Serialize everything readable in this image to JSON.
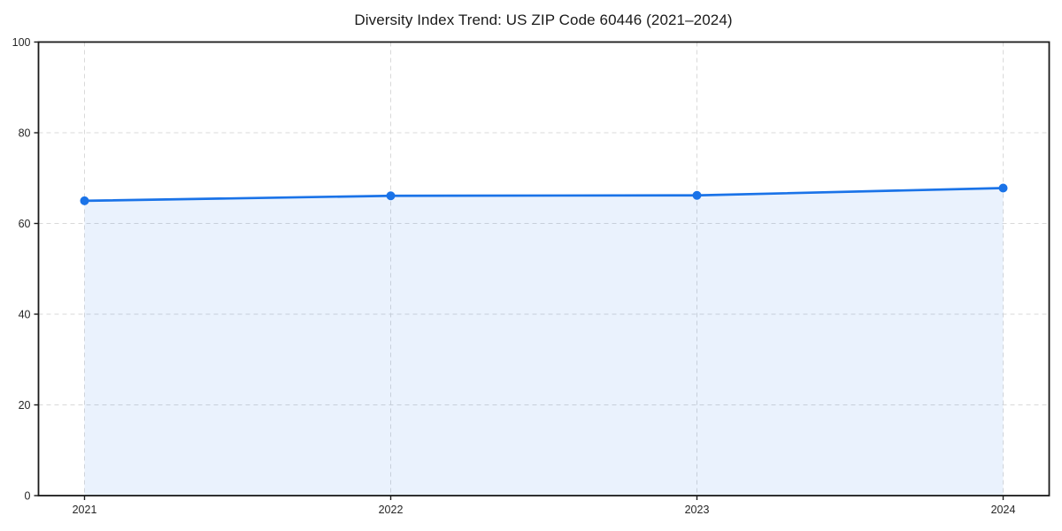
{
  "chart_data": {
    "type": "area",
    "title": "Diversity Index Trend: US ZIP Code 60446 (2021–2024)",
    "categories": [
      "2021",
      "2022",
      "2023",
      "2024"
    ],
    "values": [
      65.0,
      66.1,
      66.2,
      67.8
    ],
    "xlabel": "",
    "ylabel": "",
    "ylim": [
      0,
      100
    ],
    "yticks": [
      0,
      20,
      40,
      60,
      80,
      100
    ],
    "grid": true,
    "grid_style": "dashed",
    "legend": false,
    "colors": {
      "line": "#1a73e8",
      "marker": "#1a73e8",
      "fill": "rgba(26,115,232,0.09)",
      "grid": "#d9d9d9",
      "spine": "#1a1a1a",
      "tick_text": "#262626"
    }
  }
}
